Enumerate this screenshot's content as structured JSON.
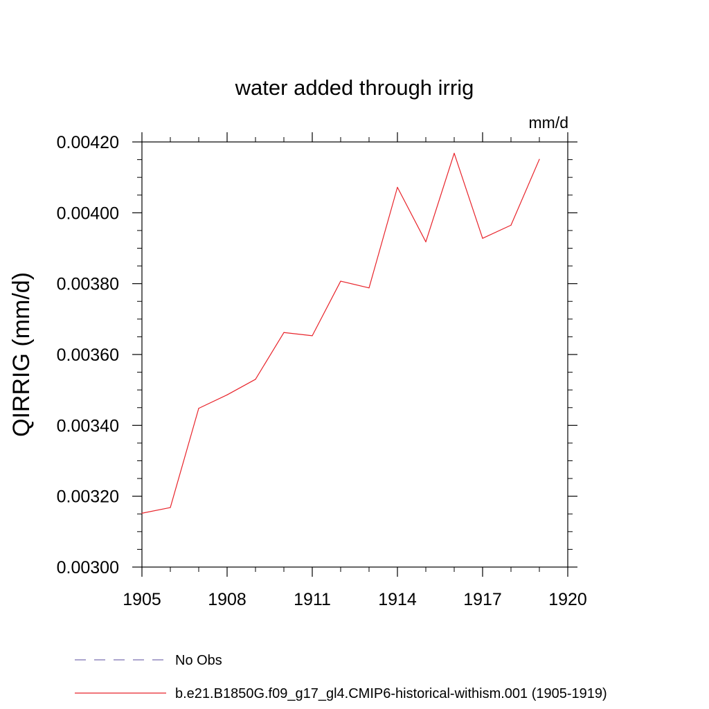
{
  "chart_data": {
    "type": "line",
    "title": "water added through irrig",
    "units": "mm/d",
    "ylabel": "QIRRIG  (mm/d)",
    "xlabel": "",
    "xlim": [
      1905,
      1920
    ],
    "ylim": [
      0.003,
      0.0042
    ],
    "x_ticks": [
      "1905",
      "1908",
      "1911",
      "1914",
      "1917",
      "1920"
    ],
    "y_ticks": [
      "0.00300",
      "0.00320",
      "0.00340",
      "0.00360",
      "0.00380",
      "0.00400",
      "0.00420"
    ],
    "grid": false,
    "legend_position": "bottom",
    "series": [
      {
        "name": "b.e21.B1850G.f09_g17_gl4.CMIP6-historical-withism.001 (1905-1919)",
        "color": "#e8232a",
        "style": "solid",
        "x": [
          1905,
          1906,
          1907,
          1908,
          1909,
          1910,
          1911,
          1912,
          1913,
          1914,
          1915,
          1916,
          1917,
          1918,
          1919
        ],
        "values": [
          0.003152,
          0.003168,
          0.003448,
          0.003486,
          0.00353,
          0.003662,
          0.003653,
          0.003807,
          0.003788,
          0.004072,
          0.003918,
          0.004168,
          0.003928,
          0.003965,
          0.004151
        ]
      }
    ],
    "legend": [
      {
        "label": "No Obs",
        "color": "#7b6fb0",
        "style": "dashed"
      },
      {
        "label": "b.e21.B1850G.f09_g17_gl4.CMIP6-historical-withism.001 (1905-1919)",
        "color": "#e8232a",
        "style": "solid"
      }
    ]
  }
}
